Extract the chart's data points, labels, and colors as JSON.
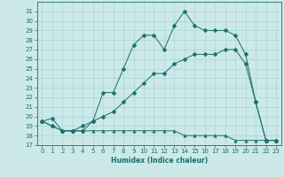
{
  "xlabel": "Humidex (Indice chaleur)",
  "ylabel": "",
  "xlim": [
    -0.5,
    23.5
  ],
  "ylim": [
    17,
    32
  ],
  "yticks": [
    17,
    18,
    19,
    20,
    21,
    22,
    23,
    24,
    25,
    26,
    27,
    28,
    29,
    30,
    31
  ],
  "xticks": [
    0,
    1,
    2,
    3,
    4,
    5,
    6,
    7,
    8,
    9,
    10,
    11,
    12,
    13,
    14,
    15,
    16,
    17,
    18,
    19,
    20,
    21,
    22,
    23
  ],
  "bg_color": "#cce8e8",
  "grid_color": "#b0d8d8",
  "line_color": "#1a6e6e",
  "line1_x": [
    0,
    1,
    2,
    3,
    4,
    5,
    6,
    7,
    8,
    9,
    10,
    11,
    12,
    13,
    14,
    15,
    16,
    17,
    18,
    19,
    20,
    21,
    22,
    23
  ],
  "line1_y": [
    19.5,
    19.8,
    18.5,
    18.5,
    19.0,
    19.5,
    22.5,
    22.5,
    25.0,
    27.5,
    28.5,
    28.5,
    27.0,
    29.5,
    31.0,
    29.5,
    29.0,
    29.0,
    29.0,
    28.5,
    26.5,
    21.5,
    17.5,
    17.5
  ],
  "line2_x": [
    0,
    1,
    2,
    3,
    4,
    5,
    6,
    7,
    8,
    9,
    10,
    11,
    12,
    13,
    14,
    15,
    16,
    17,
    18,
    19,
    20,
    21,
    22,
    23
  ],
  "line2_y": [
    19.5,
    19.0,
    18.5,
    18.5,
    18.5,
    19.5,
    20.0,
    20.5,
    21.5,
    22.5,
    23.5,
    24.5,
    24.5,
    25.5,
    26.0,
    26.5,
    26.5,
    26.5,
    27.0,
    27.0,
    25.5,
    21.5,
    17.5,
    17.5
  ],
  "line3_x": [
    0,
    1,
    2,
    3,
    4,
    5,
    6,
    7,
    8,
    9,
    10,
    11,
    12,
    13,
    14,
    15,
    16,
    17,
    18,
    19,
    20,
    21,
    22,
    23
  ],
  "line3_y": [
    19.5,
    19.0,
    18.5,
    18.5,
    18.5,
    18.5,
    18.5,
    18.5,
    18.5,
    18.5,
    18.5,
    18.5,
    18.5,
    18.5,
    18.0,
    18.0,
    18.0,
    18.0,
    18.0,
    17.5,
    17.5,
    17.5,
    17.5,
    17.5
  ],
  "marker1": "D",
  "marker2": "D",
  "marker3": "^",
  "markersize": 2.5
}
